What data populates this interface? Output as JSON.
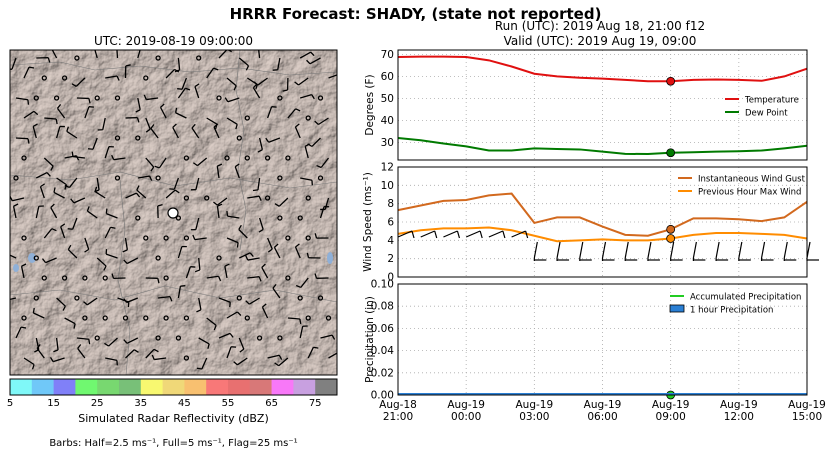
{
  "suptitle": "HRRR Forecast: SHADY, (state not reported)",
  "map": {
    "title": "UTC: 2019-08-19 09:00:00",
    "colorbar_label": "Simulated Radar Reflectivity (dBZ)",
    "colorbar_ticks": [
      "5",
      "15",
      "25",
      "35",
      "45",
      "55",
      "65",
      "75"
    ],
    "colorbar_colors": [
      "#7ff8f8",
      "#70c8f8",
      "#8080f8",
      "#70f870",
      "#78d870",
      "#78c078",
      "#f8f870",
      "#f0d878",
      "#f8c070",
      "#f87878",
      "#e87070",
      "#d87878",
      "#f878f8",
      "#c8a0e0",
      "#808080"
    ],
    "barbs_note": "Barbs: Half=2.5 ms⁻¹, Full=5 ms⁻¹, Flag=25 ms⁻¹"
  },
  "run_title": "Run (UTC): 2019 Aug 18, 21:00 f12",
  "valid_title": "Valid (UTC): 2019 Aug 19, 09:00",
  "x_ticks": [
    "Aug-18\n21:00",
    "Aug-19\n00:00",
    "Aug-19\n03:00",
    "Aug-19\n06:00",
    "Aug-19\n09:00",
    "Aug-19\n12:00",
    "Aug-19\n15:00"
  ],
  "chart_data": [
    {
      "type": "line",
      "ylabel": "Degrees (F)",
      "ylim": [
        22,
        72
      ],
      "yticks": [
        30,
        40,
        50,
        60,
        70
      ],
      "x_hours": [
        0,
        1,
        2,
        3,
        4,
        5,
        6,
        7,
        8,
        9,
        10,
        11,
        12,
        13,
        14,
        15,
        16,
        17,
        18
      ],
      "series": [
        {
          "name": "Temperature",
          "color": "#e01010",
          "values": [
            68.8,
            69,
            69,
            68.8,
            67.3,
            64.5,
            61.2,
            60,
            59.4,
            59,
            58.4,
            57.8,
            57.8,
            58.4,
            58.6,
            58.4,
            58,
            60,
            63.5
          ]
        },
        {
          "name": "Dew Point",
          "color": "#007a00",
          "values": [
            32,
            31,
            29.5,
            28.2,
            26.3,
            26.3,
            27.3,
            27,
            26.8,
            25.8,
            24.8,
            24.7,
            25.3,
            25.5,
            25.8,
            26,
            26.3,
            27.3,
            28.5
          ]
        }
      ],
      "marker_hour": 12,
      "legend": "right"
    },
    {
      "type": "line",
      "ylabel": "Wind Speed (ms⁻¹)",
      "ylim": [
        0,
        12
      ],
      "yticks": [
        0,
        2,
        4,
        6,
        8,
        10,
        12
      ],
      "x_hours": [
        0,
        1,
        2,
        3,
        4,
        5,
        6,
        7,
        8,
        9,
        10,
        11,
        12,
        13,
        14,
        15,
        16,
        17,
        18
      ],
      "series": [
        {
          "name": "Instantaneous Wind Gust",
          "color": "#d2691e",
          "values": [
            7.3,
            7.8,
            8.3,
            8.4,
            8.9,
            9.1,
            5.9,
            6.5,
            6.5,
            5.5,
            4.6,
            4.5,
            5.2,
            6.4,
            6.4,
            6.3,
            6.1,
            6.5,
            8.2
          ]
        },
        {
          "name": "Previous Hour Max Wind",
          "color": "#ff8c00",
          "values": [
            4.7,
            5.1,
            5.3,
            5.3,
            5.4,
            5.1,
            4.5,
            3.9,
            4.0,
            4.1,
            4.0,
            4.0,
            4.2,
            4.6,
            4.8,
            4.8,
            4.7,
            4.6,
            4.2
          ]
        }
      ],
      "marker_hour": 12,
      "legend": "top-right"
    },
    {
      "type": "area",
      "ylabel": "Precipitation (in)",
      "ylim": [
        0,
        0.1
      ],
      "yticks": [
        "0.00",
        "0.02",
        "0.04",
        "0.06",
        "0.08",
        "0.10"
      ],
      "x_hours": [
        0,
        18
      ],
      "series": [
        {
          "name": "Accumulated Precipitation",
          "color": "#22cc22",
          "values": [
            0,
            0
          ]
        },
        {
          "name": "1 hour Precipitation",
          "color": "#2a7fd4",
          "values": [
            0,
            0
          ]
        }
      ],
      "marker_hour": 12,
      "legend": "top-right"
    }
  ]
}
